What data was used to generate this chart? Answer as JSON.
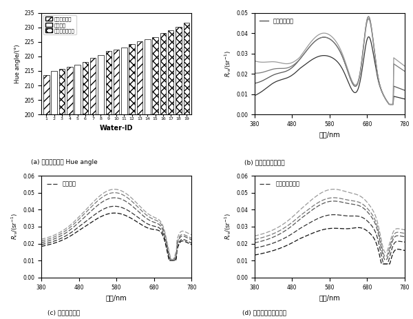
{
  "bar_categories": [
    1,
    2,
    3,
    4,
    5,
    6,
    7,
    8,
    9,
    10,
    11,
    12,
    13,
    14,
    15,
    16,
    17,
    18,
    19
  ],
  "bar_values": [
    213.5,
    215.0,
    215.8,
    216.5,
    217.2,
    218.0,
    219.5,
    220.5,
    221.8,
    222.3,
    223.0,
    224.2,
    225.2,
    225.8,
    226.5,
    228.0,
    229.0,
    230.2,
    231.5
  ],
  "bar_types": [
    0,
    1,
    2,
    0,
    1,
    2,
    0,
    1,
    2,
    0,
    1,
    2,
    0,
    1,
    2,
    2,
    2,
    2,
    2
  ],
  "ylim_bar": [
    200,
    235
  ],
  "yticks_bar": [
    200,
    205,
    210,
    215,
    220,
    225,
    230,
    235
  ],
  "title_a": "(a) 不同颜色水体 Hue angle",
  "title_b": "(b) 绻色异常水体光谱",
  "title_c": "(c) 一般水体光谱",
  "title_d": "(d) 黄棕色异常水体光谱",
  "xlabel_wave": "波长/nm",
  "xlabel_bar": "Water-ID",
  "ylabel_bar": "Hue angle/(°)",
  "legend_green": "绻色异常水体",
  "legend_normal": "一般水体",
  "legend_yellow": "黄棕色异常水体",
  "ylim_rs_b": [
    0.0,
    0.05
  ],
  "yticks_rs_b": [
    0.0,
    0.01,
    0.02,
    0.03,
    0.04,
    0.05
  ],
  "ylim_rs_cd": [
    0.0,
    0.06
  ],
  "yticks_rs_cd": [
    0.0,
    0.01,
    0.02,
    0.03,
    0.04,
    0.05,
    0.06
  ]
}
